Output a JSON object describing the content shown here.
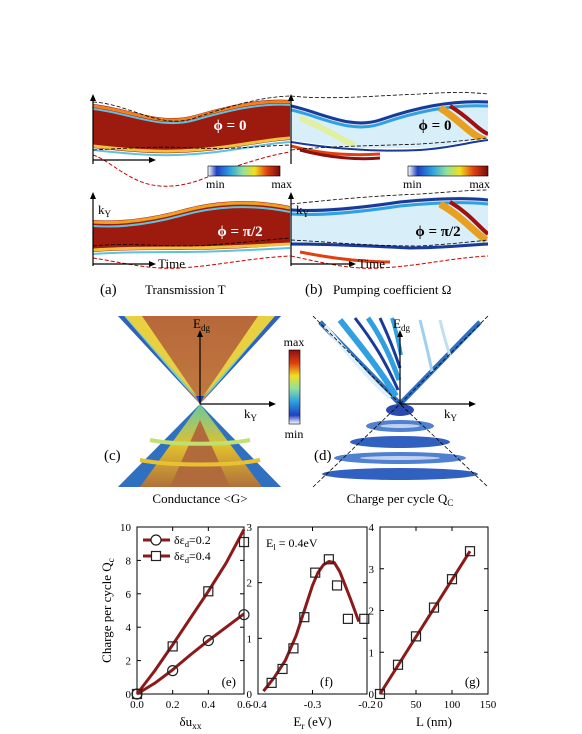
{
  "panels": {
    "a": {
      "tag": "(a)",
      "caption": "Transmission T",
      "phi_top": "ϕ = 0",
      "phi_bottom": "ϕ = π/2",
      "axis_y": "k",
      "axis_y_sub": "Y",
      "axis_x": "Time",
      "cbar_min": "min",
      "cbar_max": "max"
    },
    "b": {
      "tag": "(b)",
      "caption": "Pumping coefficient Ω",
      "phi_top": "ϕ = 0",
      "phi_bottom": "ϕ = π/2",
      "axis_y": "k",
      "axis_y_sub": "Y",
      "axis_x": "Time",
      "cbar_min": "min",
      "cbar_max": "max"
    },
    "c": {
      "tag": "(c)",
      "caption": "Conductance <G>",
      "axis_y": "E",
      "axis_y_sub": "dg",
      "axis_x": "k",
      "axis_x_sub": "Y"
    },
    "d": {
      "tag": "(d)",
      "caption_main": "Charge per cycle Q",
      "caption_sub": "C",
      "axis_y": "E",
      "axis_y_sub": "dg",
      "axis_x": "k",
      "axis_x_sub": "Y"
    },
    "cbar_cd": {
      "max": "max",
      "min": "min"
    }
  },
  "colors": {
    "dark_red": "#8b1010",
    "series": "#8b1a1a",
    "cond_brown": "#b06a3c"
  },
  "chart_data": [
    {
      "type": "line",
      "panel": "(e)",
      "ylabel_main": "Charge per cycle Q",
      "ylabel_sub": "c",
      "xlabel_main": "δu",
      "xlabel_sub": "xx",
      "xlim": [
        0,
        0.6
      ],
      "ylim": [
        0,
        10
      ],
      "xticks": [
        "0.0",
        "0.2",
        "0.4",
        "0.6"
      ],
      "yticks": [
        "0",
        "2",
        "4",
        "6",
        "8",
        "10"
      ],
      "series": [
        {
          "legend_main": "δε",
          "legend_sub": "d",
          "legend_tail": "=0.2",
          "marker": "circle",
          "x": [
            0,
            0.2,
            0.4,
            0.6
          ],
          "y": [
            0,
            1.4,
            3.2,
            4.75
          ],
          "line_x": [
            0,
            0.1,
            0.2,
            0.3,
            0.4,
            0.5,
            0.6
          ],
          "line_y": [
            0,
            0.65,
            1.45,
            2.35,
            3.2,
            4.0,
            4.8
          ]
        },
        {
          "legend_main": "δε",
          "legend_sub": "d",
          "legend_tail": "=0.4",
          "marker": "square",
          "x": [
            0,
            0.2,
            0.4,
            0.6
          ],
          "y": [
            0,
            2.85,
            6.15,
            9.1
          ],
          "line_x": [
            0,
            0.1,
            0.2,
            0.3,
            0.4,
            0.5,
            0.6
          ],
          "line_y": [
            0,
            1.4,
            2.95,
            4.55,
            6.15,
            7.85,
            9.85
          ]
        }
      ]
    },
    {
      "type": "line",
      "panel": "(f)",
      "annotation_main": "E",
      "annotation_sub": "l",
      "annotation_tail": " = 0.4eV",
      "xlabel_main": "E",
      "xlabel_sub": "r",
      "xlabel_tail": " (eV)",
      "xlim": [
        -0.4,
        -0.2
      ],
      "ylim": [
        0,
        3
      ],
      "xticks": [
        "-0.4",
        "-0.3",
        "-0.2"
      ],
      "yticks": [
        "0",
        "1",
        "2",
        "3"
      ],
      "series": [
        {
          "marker": "square",
          "x": [
            -0.38,
            -0.36,
            -0.34,
            -0.32,
            -0.3,
            -0.28,
            -0.26,
            -0.24,
            -0.22
          ],
          "y": [
            0.2,
            0.45,
            0.82,
            1.38,
            2.18,
            2.45,
            1.95,
            1.35,
            null
          ],
          "points_x": [
            -0.375,
            -0.355,
            -0.335,
            -0.315,
            -0.295,
            -0.27,
            -0.255,
            -0.235,
            -0.215
          ],
          "points_y": [
            0.2,
            0.45,
            0.82,
            1.38,
            2.18,
            2.42,
            1.95,
            1.35,
            null
          ],
          "line_x": [
            -0.39,
            -0.37,
            -0.35,
            -0.33,
            -0.31,
            -0.3,
            -0.29,
            -0.28,
            -0.27,
            -0.26,
            -0.25,
            -0.24,
            -0.23,
            -0.215
          ],
          "line_y": [
            0.05,
            0.3,
            0.6,
            1.05,
            1.65,
            1.95,
            2.18,
            2.32,
            2.38,
            2.36,
            2.2,
            1.95,
            1.7,
            1.3
          ]
        }
      ]
    },
    {
      "type": "line",
      "panel": "(g)",
      "xlabel_main": "L (nm)",
      "xlim": [
        0,
        150
      ],
      "ylim": [
        0,
        4
      ],
      "xticks": [
        "0",
        "50",
        "100",
        "150"
      ],
      "yticks": [
        "0",
        "1",
        "2",
        "3",
        "4"
      ],
      "series": [
        {
          "marker": "square",
          "x": [
            0,
            25,
            50,
            75,
            100,
            125
          ],
          "y": [
            0,
            0.7,
            1.38,
            2.07,
            2.75,
            3.42
          ],
          "line_x": [
            0,
            125
          ],
          "line_y": [
            0,
            3.42
          ]
        }
      ]
    }
  ]
}
